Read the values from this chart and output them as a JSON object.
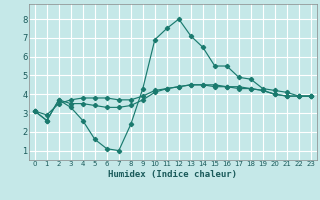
{
  "xlabel": "Humidex (Indice chaleur)",
  "bg_color": "#c5e8e8",
  "grid_color": "#ffffff",
  "line_color": "#1a7a6e",
  "x_ticks": [
    0,
    1,
    2,
    3,
    4,
    5,
    6,
    7,
    8,
    9,
    10,
    11,
    12,
    13,
    14,
    15,
    16,
    17,
    18,
    19,
    20,
    21,
    22,
    23
  ],
  "y_ticks": [
    1,
    2,
    3,
    4,
    5,
    6,
    7,
    8
  ],
  "xlim": [
    -0.5,
    23.5
  ],
  "ylim": [
    0.5,
    8.8
  ],
  "line1_x": [
    0,
    1,
    2,
    3,
    4,
    5,
    6,
    7,
    8,
    9,
    10,
    11,
    12,
    13,
    14,
    15,
    16,
    17,
    18,
    19,
    20,
    21,
    22,
    23
  ],
  "line1_y": [
    3.1,
    2.6,
    3.7,
    3.3,
    2.6,
    1.6,
    1.1,
    1.0,
    2.4,
    4.3,
    6.9,
    7.5,
    8.0,
    7.1,
    6.5,
    5.5,
    5.5,
    4.9,
    4.8,
    4.3,
    4.2,
    4.1,
    3.9,
    3.9
  ],
  "line2_x": [
    0,
    1,
    2,
    3,
    4,
    5,
    6,
    7,
    8,
    9,
    10,
    11,
    12,
    13,
    14,
    15,
    16,
    17,
    18,
    19,
    20,
    21,
    22,
    23
  ],
  "line2_y": [
    3.1,
    2.6,
    3.7,
    3.5,
    3.5,
    3.4,
    3.3,
    3.3,
    3.4,
    3.7,
    4.1,
    4.3,
    4.4,
    4.5,
    4.5,
    4.4,
    4.4,
    4.3,
    4.3,
    4.2,
    4.0,
    3.9,
    3.9,
    3.9
  ],
  "line3_x": [
    0,
    1,
    2,
    3,
    4,
    5,
    6,
    7,
    8,
    9,
    10,
    11,
    12,
    13,
    14,
    15,
    16,
    17,
    18,
    19,
    20,
    21,
    22,
    23
  ],
  "line3_y": [
    3.1,
    2.9,
    3.5,
    3.7,
    3.8,
    3.8,
    3.8,
    3.7,
    3.7,
    3.9,
    4.2,
    4.3,
    4.4,
    4.5,
    4.5,
    4.5,
    4.4,
    4.4,
    4.3,
    4.2,
    4.0,
    3.9,
    3.9,
    3.9
  ]
}
